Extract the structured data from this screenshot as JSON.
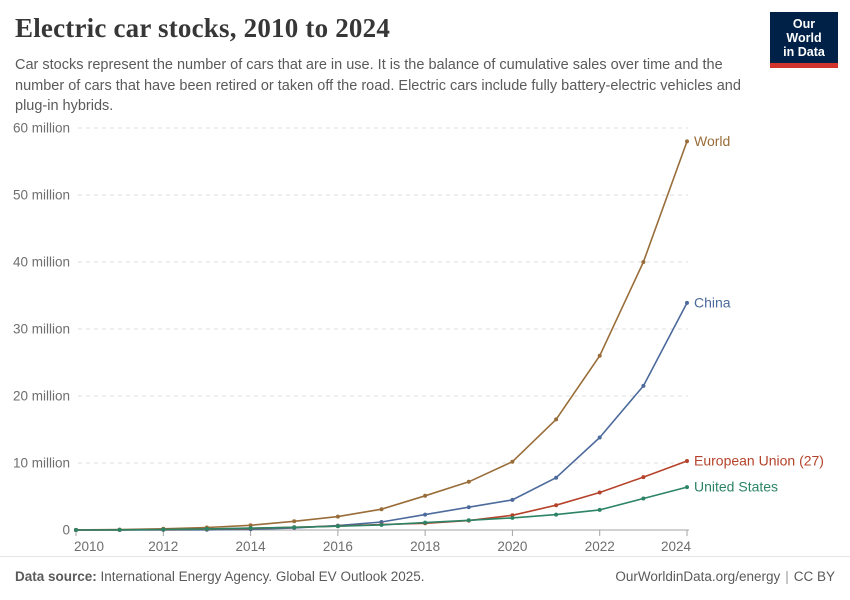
{
  "header": {
    "title": "Electric car stocks, 2010 to 2024",
    "subtitle": "Car stocks represent the number of cars that are in use. It is the balance of cumulative sales over time and the number of cars that have been retired or taken off the road. Electric cars include fully battery-electric vehicles and plug-in hybrids.",
    "logo": {
      "line1": "Our World",
      "line2": "in Data",
      "bg_color": "#002147",
      "bar_color": "#D0342C"
    }
  },
  "chart_data": {
    "type": "line",
    "title": "Electric car stocks, 2010 to 2024",
    "xlabel": "",
    "ylabel": "",
    "unit": "million cars",
    "x": [
      2010,
      2011,
      2012,
      2013,
      2014,
      2015,
      2016,
      2017,
      2018,
      2019,
      2020,
      2021,
      2022,
      2023,
      2024
    ],
    "series": [
      {
        "name": "World",
        "color": "#996D39",
        "values": [
          0.02,
          0.06,
          0.18,
          0.38,
          0.7,
          1.3,
          2.0,
          3.1,
          5.1,
          7.2,
          10.2,
          16.5,
          26.0,
          40.0,
          58.0
        ]
      },
      {
        "name": "China",
        "color": "#4C6A9C",
        "values": [
          0.0,
          0.01,
          0.02,
          0.03,
          0.1,
          0.31,
          0.65,
          1.2,
          2.3,
          3.4,
          4.5,
          7.8,
          13.8,
          21.5,
          33.9
        ]
      },
      {
        "name": "European Union (27)",
        "color": "#B5432B",
        "values": [
          0.0,
          0.02,
          0.06,
          0.13,
          0.24,
          0.41,
          0.58,
          0.82,
          1.0,
          1.4,
          2.2,
          3.7,
          5.6,
          7.9,
          10.3
        ]
      },
      {
        "name": "United States",
        "color": "#2C8465",
        "values": [
          0.0,
          0.02,
          0.07,
          0.17,
          0.29,
          0.41,
          0.56,
          0.76,
          1.1,
          1.45,
          1.8,
          2.3,
          3.0,
          4.7,
          6.4
        ]
      }
    ],
    "ylim": [
      0,
      60
    ],
    "yticks": [
      {
        "v": 0,
        "label": "0"
      },
      {
        "v": 10,
        "label": "10 million"
      },
      {
        "v": 20,
        "label": "20 million"
      },
      {
        "v": 30,
        "label": "30 million"
      },
      {
        "v": 40,
        "label": "40 million"
      },
      {
        "v": 50,
        "label": "50 million"
      },
      {
        "v": 60,
        "label": "60 million"
      }
    ],
    "xticks": [
      {
        "v": 2010,
        "label": "2010"
      },
      {
        "v": 2012,
        "label": "2012"
      },
      {
        "v": 2014,
        "label": "2014"
      },
      {
        "v": 2016,
        "label": "2016"
      },
      {
        "v": 2018,
        "label": "2018"
      },
      {
        "v": 2020,
        "label": "2020"
      },
      {
        "v": 2022,
        "label": "2022"
      },
      {
        "v": 2024,
        "label": "2024"
      }
    ],
    "grid": "horizontal-dashed",
    "grid_color": "#dcdcdc",
    "axis_color": "#a3a3a3",
    "tick_label_color": "#6e6e6e",
    "legend_position": "end-of-line-labels"
  },
  "footer": {
    "source_label": "Data source:",
    "source_text": "International Energy Agency. Global EV Outlook 2025.",
    "url": "OurWorldinData.org/energy",
    "separator": "|",
    "license": "CC BY"
  }
}
